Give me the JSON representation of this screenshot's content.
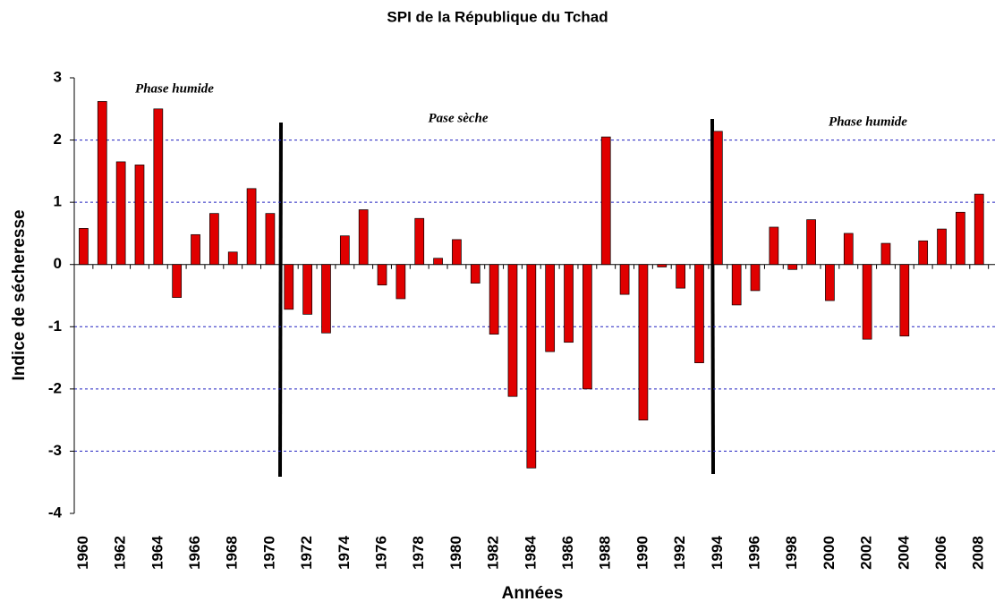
{
  "chart_data": {
    "type": "bar",
    "title": "SPI de la République du Tchad",
    "x_label": "Années",
    "y_label": "Indice de sécheresse",
    "categories": [
      "1960",
      null,
      "1962",
      null,
      "1964",
      null,
      "1966",
      null,
      "1968",
      null,
      "1970",
      null,
      "1972",
      null,
      "1974",
      null,
      "1976",
      null,
      "1978",
      null,
      "1980",
      null,
      "1982",
      null,
      "1984",
      null,
      "1986",
      null,
      "1988",
      null,
      "1990",
      null,
      "1992",
      null,
      "1994",
      null,
      "1996",
      null,
      "1998",
      null,
      "2000",
      null,
      "2002",
      null,
      "2004",
      null,
      "2006",
      null,
      "2008"
    ],
    "values": [
      0.58,
      2.62,
      1.65,
      1.6,
      2.5,
      -0.53,
      0.48,
      0.82,
      0.2,
      1.22,
      0.82,
      -0.72,
      -0.8,
      -1.1,
      0.46,
      0.88,
      -0.33,
      -0.55,
      0.74,
      0.1,
      0.4,
      -0.3,
      -1.12,
      -2.12,
      -3.27,
      -1.4,
      -1.25,
      -2.0,
      2.05,
      -0.48,
      -2.5,
      -0.04,
      -0.38,
      -1.58,
      2.14,
      -0.65,
      -0.42,
      0.6,
      -0.08,
      0.72,
      -0.58,
      0.5,
      -1.2,
      0.34,
      -1.15,
      0.38,
      0.57,
      0.84,
      1.13
    ],
    "color": "#e00000",
    "ylim": [
      -4,
      3
    ],
    "yticks": [
      -4,
      -3,
      -2,
      -1,
      0,
      1,
      2,
      3
    ],
    "grid": true,
    "annotations": [
      "Phase humide",
      "Pase sèche",
      "Phase humide"
    ]
  }
}
